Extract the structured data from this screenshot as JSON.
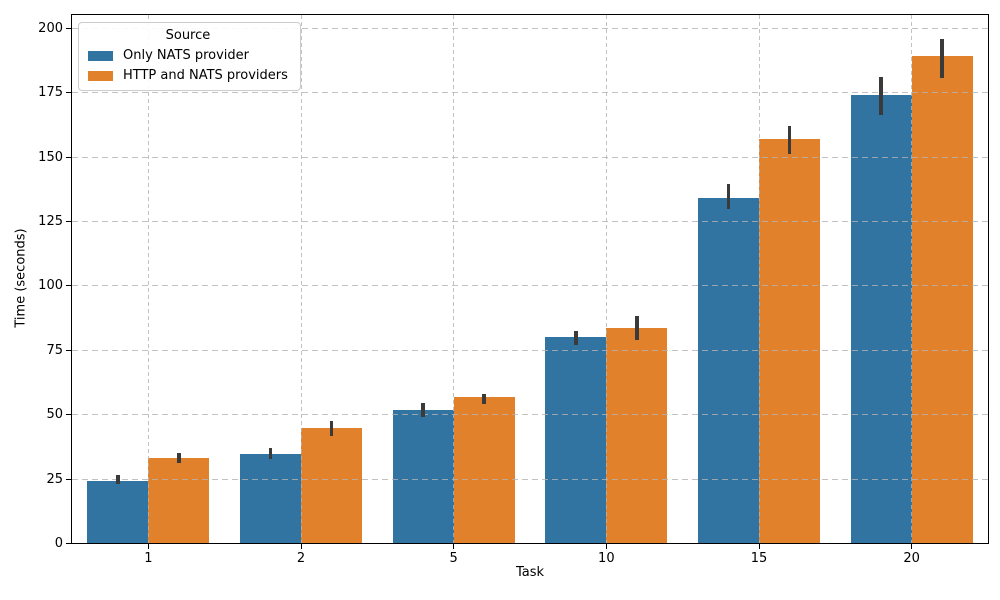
{
  "chart_data": {
    "type": "bar",
    "title": "",
    "xlabel": "Task",
    "ylabel": "Time (seconds)",
    "categories": [
      "1",
      "2",
      "5",
      "10",
      "15",
      "20"
    ],
    "y_ticks": [
      0,
      25,
      50,
      75,
      100,
      125,
      150,
      175,
      200
    ],
    "ylim": [
      0,
      205
    ],
    "grid": "dashed gray horizontal and vertical gridlines drawn over bars",
    "legend": {
      "title": "Source",
      "position": "upper left"
    },
    "series": [
      {
        "name": "Only NATS provider",
        "color": "#3274A1",
        "values": [
          24,
          34.5,
          51.5,
          80,
          134,
          174
        ],
        "ci_low": [
          23,
          32.5,
          49,
          77,
          129.5,
          166
        ],
        "ci_high": [
          26.5,
          37,
          54.5,
          82.5,
          139.5,
          181
        ]
      },
      {
        "name": "HTTP and NATS providers",
        "color": "#E1812C",
        "values": [
          33,
          44.5,
          56.5,
          83.5,
          157,
          189
        ],
        "ci_low": [
          31,
          41.5,
          54,
          79,
          151,
          180.5
        ],
        "ci_high": [
          35,
          47.5,
          58,
          88,
          162,
          195.5
        ]
      }
    ],
    "error_bar_color": "#3a3a3a",
    "grid_color": "#c4c4c4",
    "bar_group_width_fraction": 0.8
  }
}
